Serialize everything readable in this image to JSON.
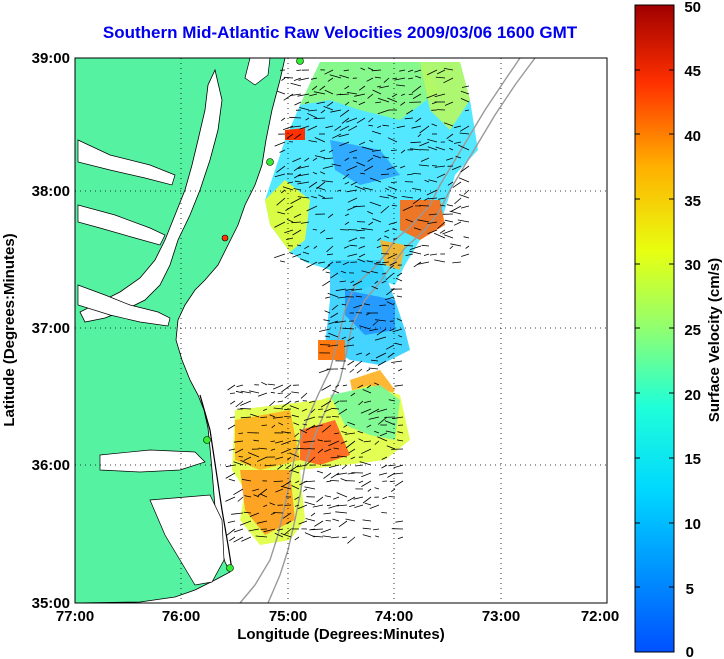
{
  "title": "Southern Mid-Atlantic Raw Velocities 2009/03/06 1600 GMT",
  "axes": {
    "xlabel": "Longitude (Degrees:Minutes)",
    "ylabel": "Latitude (Degrees:Minutes)",
    "xticks": [
      "77:00",
      "76:00",
      "75:00",
      "74:00",
      "73:00",
      "72:00"
    ],
    "yticks": [
      "39:00",
      "38:00",
      "37:00",
      "36:00",
      "35:00"
    ],
    "grid": "dotted"
  },
  "colorbar": {
    "label": "Surface Velocity (cm/s)",
    "ticks": [
      "50",
      "45",
      "40",
      "35",
      "30",
      "25",
      "20",
      "15",
      "10",
      "5",
      "0"
    ],
    "range": [
      0,
      50
    ]
  },
  "colors": {
    "land": "#55f2a2",
    "water": "#ffffff",
    "title": "#0000ee",
    "station_marker": "#33ee33",
    "highlight_marker": "#ff3300"
  }
}
